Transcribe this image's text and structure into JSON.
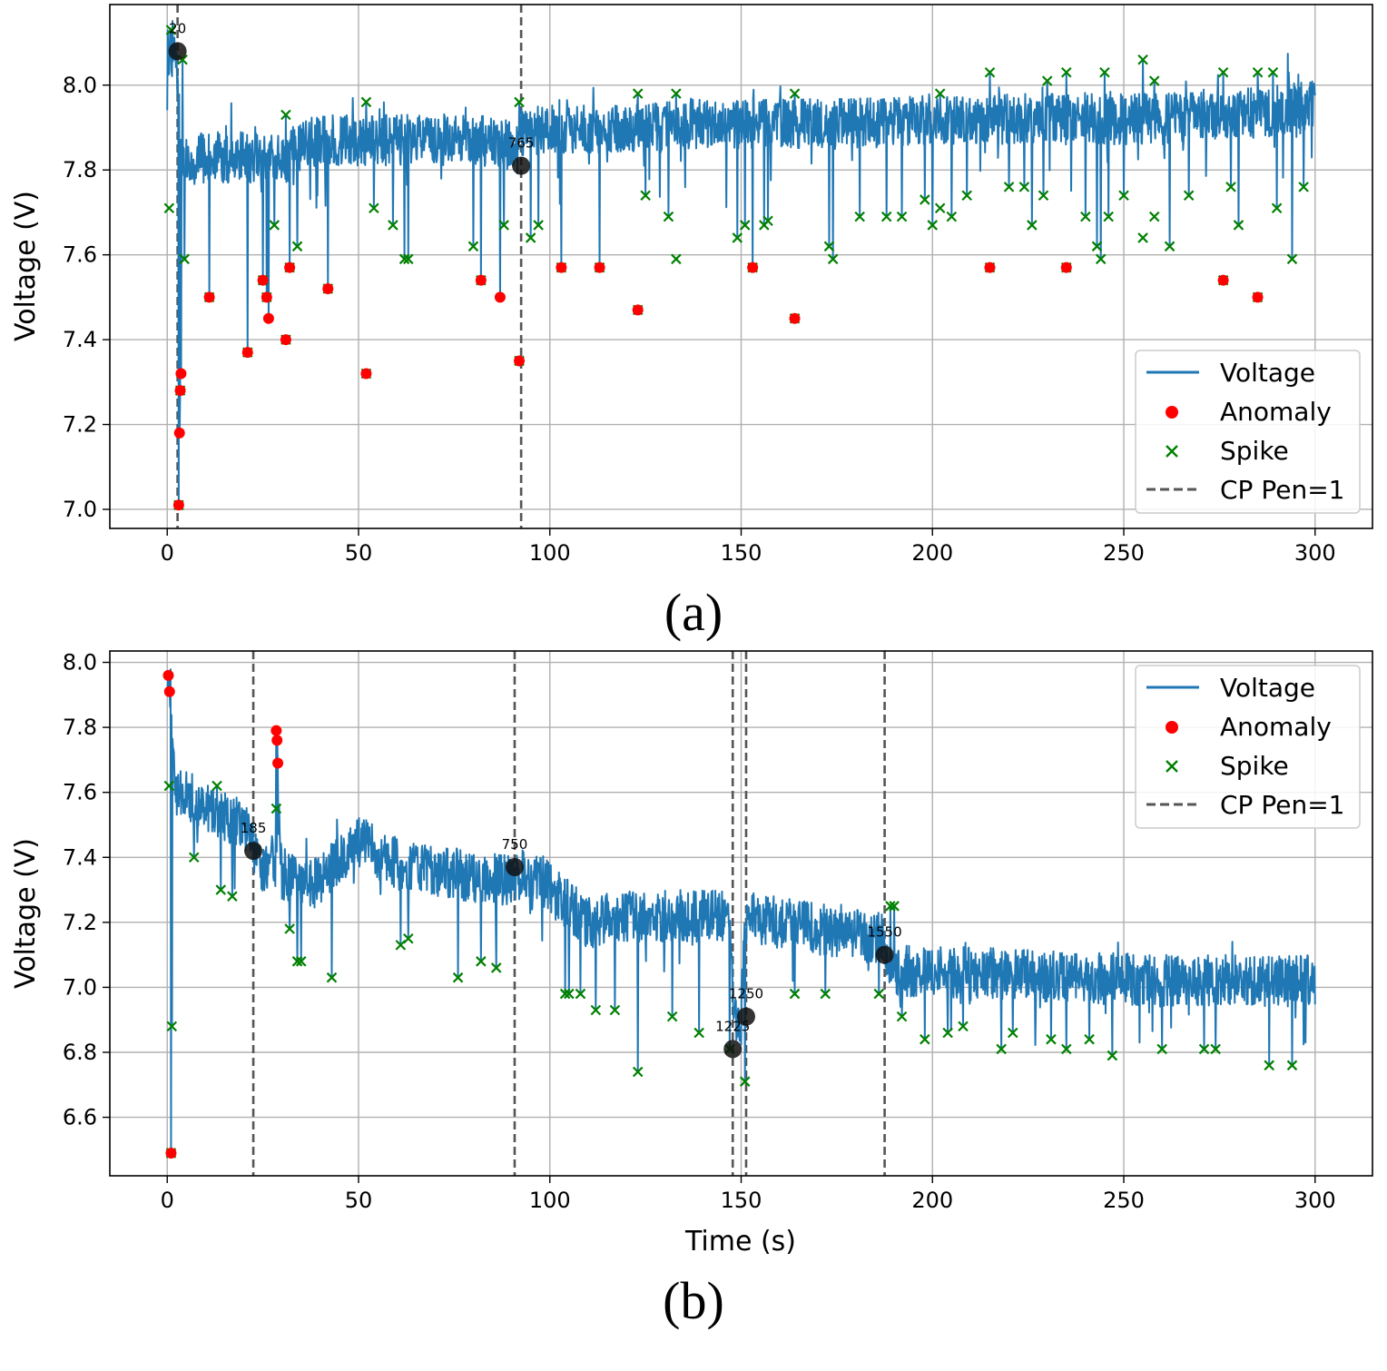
{
  "figure": {
    "captions": [
      "(a)",
      "(b)"
    ]
  },
  "colors": {
    "voltage": "#1f77b4",
    "anomaly": "#ff0000",
    "spike": "#008000",
    "changepoint_line": "#555555",
    "changepoint_marker": "#111111",
    "grid": "#b0b0b0"
  },
  "chart_data": [
    {
      "type": "line",
      "panel": "(a)",
      "xlabel": "",
      "ylabel": "Voltage (V)",
      "xlim": [
        -15,
        315
      ],
      "ylim": [
        6.955,
        8.19
      ],
      "xticks": [
        0,
        50,
        100,
        150,
        200,
        250,
        300
      ],
      "yticks": [
        7.0,
        7.2,
        7.4,
        7.6,
        7.8,
        8.0
      ],
      "grid": true,
      "legend_position": "lower right",
      "legend": [
        "Voltage",
        "Anomaly",
        "Spike",
        "CP Pen=1"
      ],
      "baseline": {
        "x": [
          0,
          2,
          4,
          10,
          20,
          30,
          35,
          40,
          50,
          60,
          70,
          80,
          90,
          92,
          95,
          100,
          110,
          120,
          130,
          140,
          150,
          160,
          170,
          180,
          190,
          200,
          210,
          220,
          230,
          240,
          250,
          260,
          270,
          280,
          290,
          300
        ],
        "y": [
          8.08,
          8.08,
          7.82,
          7.83,
          7.83,
          7.82,
          7.86,
          7.87,
          7.87,
          7.87,
          7.87,
          7.87,
          7.86,
          7.88,
          7.89,
          7.9,
          7.9,
          7.9,
          7.9,
          7.91,
          7.91,
          7.91,
          7.91,
          7.91,
          7.91,
          7.92,
          7.92,
          7.92,
          7.92,
          7.92,
          7.92,
          7.92,
          7.93,
          7.93,
          7.94,
          7.95
        ]
      },
      "noise_amplitude": 0.06,
      "dips": [
        [
          3,
          7.01
        ],
        [
          3.2,
          7.18
        ],
        [
          3.4,
          7.28
        ],
        [
          3.6,
          7.32
        ],
        [
          4.5,
          7.59
        ],
        [
          11,
          7.5
        ],
        [
          21,
          7.37
        ],
        [
          25,
          7.54
        ],
        [
          26,
          7.5
        ],
        [
          26.5,
          7.45
        ],
        [
          28,
          7.67
        ],
        [
          31,
          7.4
        ],
        [
          32,
          7.57
        ],
        [
          34,
          7.62
        ],
        [
          42,
          7.52
        ],
        [
          52,
          7.32
        ],
        [
          54,
          7.71
        ],
        [
          59,
          7.67
        ],
        [
          62,
          7.59
        ],
        [
          63,
          7.59
        ],
        [
          80,
          7.62
        ],
        [
          82,
          7.54
        ],
        [
          87,
          7.5
        ],
        [
          88,
          7.67
        ],
        [
          92,
          7.35
        ],
        [
          95,
          7.64
        ],
        [
          97,
          7.67
        ],
        [
          103,
          7.57
        ],
        [
          113,
          7.57
        ],
        [
          123,
          7.47
        ],
        [
          125,
          7.74
        ],
        [
          131,
          7.69
        ],
        [
          133,
          7.59
        ],
        [
          149,
          7.64
        ],
        [
          151,
          7.67
        ],
        [
          153,
          7.57
        ],
        [
          156,
          7.67
        ],
        [
          157,
          7.68
        ],
        [
          164,
          7.45
        ],
        [
          173,
          7.62
        ],
        [
          174,
          7.59
        ],
        [
          181,
          7.69
        ],
        [
          188,
          7.69
        ],
        [
          192,
          7.69
        ],
        [
          198,
          7.73
        ],
        [
          200,
          7.67
        ],
        [
          202,
          7.71
        ],
        [
          205,
          7.69
        ],
        [
          209,
          7.74
        ],
        [
          215,
          7.57
        ],
        [
          220,
          7.76
        ],
        [
          224,
          7.76
        ],
        [
          226,
          7.67
        ],
        [
          229,
          7.74
        ],
        [
          235,
          7.57
        ],
        [
          240,
          7.69
        ],
        [
          243,
          7.62
        ],
        [
          244,
          7.59
        ],
        [
          246,
          7.69
        ],
        [
          250,
          7.74
        ],
        [
          255,
          7.64
        ],
        [
          258,
          7.69
        ],
        [
          262,
          7.62
        ],
        [
          267,
          7.74
        ],
        [
          276,
          7.54
        ],
        [
          278,
          7.76
        ],
        [
          280,
          7.67
        ],
        [
          285,
          7.5
        ],
        [
          290,
          7.71
        ],
        [
          294,
          7.59
        ],
        [
          297,
          7.76
        ]
      ],
      "upward_spikes": [
        [
          1,
          8.13
        ],
        [
          4,
          8.06
        ],
        [
          31,
          7.93
        ],
        [
          52,
          7.96
        ],
        [
          92,
          7.96
        ],
        [
          123,
          7.98
        ],
        [
          133,
          7.98
        ],
        [
          164,
          7.98
        ],
        [
          202,
          7.98
        ],
        [
          215,
          8.03
        ],
        [
          230,
          8.01
        ],
        [
          235,
          8.03
        ],
        [
          245,
          8.03
        ],
        [
          255,
          8.06
        ],
        [
          258,
          8.01
        ],
        [
          276,
          8.03
        ],
        [
          285,
          8.03
        ],
        [
          289,
          8.03
        ]
      ],
      "anomaly": {
        "x": [
          3,
          3.2,
          3.4,
          3.6,
          11,
          21,
          25,
          26,
          26.5,
          31,
          32,
          42,
          52,
          82,
          87,
          92,
          103,
          113,
          123,
          153,
          164,
          215,
          235,
          276,
          285
        ],
        "y": [
          7.01,
          7.18,
          7.28,
          7.32,
          7.5,
          7.37,
          7.54,
          7.5,
          7.45,
          7.4,
          7.57,
          7.52,
          7.32,
          7.54,
          7.5,
          7.35,
          7.57,
          7.57,
          7.47,
          7.57,
          7.45,
          7.57,
          7.57,
          7.54,
          7.5
        ]
      },
      "spike": {
        "x": [
          0.5,
          3,
          3.4,
          4.5,
          11,
          21,
          25,
          26,
          28,
          31,
          32,
          34,
          42,
          52,
          54,
          59,
          62,
          63,
          80,
          82,
          88,
          92,
          95,
          97,
          103,
          113,
          123,
          125,
          131,
          133,
          149,
          151,
          153,
          156,
          157,
          164,
          173,
          174,
          181,
          188,
          192,
          198,
          200,
          202,
          205,
          209,
          215,
          220,
          224,
          226,
          229,
          235,
          240,
          243,
          244,
          246,
          250,
          255,
          258,
          262,
          267,
          276,
          278,
          280,
          285,
          290,
          294,
          297,
          1,
          4,
          31,
          52,
          92,
          123,
          133,
          164,
          202,
          215,
          230,
          235,
          245,
          255,
          258,
          276,
          285,
          289
        ],
        "y": [
          7.71,
          7.01,
          7.28,
          7.59,
          7.5,
          7.37,
          7.54,
          7.5,
          7.67,
          7.4,
          7.57,
          7.62,
          7.52,
          7.32,
          7.71,
          7.67,
          7.59,
          7.59,
          7.62,
          7.54,
          7.67,
          7.35,
          7.64,
          7.67,
          7.57,
          7.57,
          7.47,
          7.74,
          7.69,
          7.59,
          7.64,
          7.67,
          7.57,
          7.67,
          7.68,
          7.45,
          7.62,
          7.59,
          7.69,
          7.69,
          7.69,
          7.73,
          7.67,
          7.71,
          7.69,
          7.74,
          7.57,
          7.76,
          7.76,
          7.67,
          7.74,
          7.57,
          7.69,
          7.62,
          7.59,
          7.69,
          7.74,
          7.64,
          7.69,
          7.62,
          7.74,
          7.54,
          7.76,
          7.67,
          7.5,
          7.71,
          7.59,
          7.76,
          8.13,
          8.06,
          7.93,
          7.96,
          7.96,
          7.98,
          7.98,
          7.98,
          7.98,
          8.03,
          8.01,
          8.03,
          8.03,
          8.06,
          8.01,
          8.03,
          8.03,
          8.03
        ]
      },
      "changepoints": [
        {
          "x": 2.7,
          "y": 8.08,
          "label": "20"
        },
        {
          "x": 92.5,
          "y": 7.81,
          "label": "765"
        }
      ]
    },
    {
      "type": "line",
      "panel": "(b)",
      "xlabel": "Time (s)",
      "ylabel": "Voltage (V)",
      "xlim": [
        -15,
        315
      ],
      "ylim": [
        6.42,
        8.035
      ],
      "xticks": [
        0,
        50,
        100,
        150,
        200,
        250,
        300
      ],
      "yticks": [
        6.6,
        6.8,
        7.0,
        7.2,
        7.4,
        7.6,
        7.8,
        8.0
      ],
      "grid": true,
      "legend_position": "upper right",
      "legend": [
        "Voltage",
        "Anomaly",
        "Spike",
        "CP Pen=1"
      ],
      "baseline": {
        "x": [
          0,
          1,
          2,
          5,
          10,
          15,
          20,
          22,
          25,
          28,
          29,
          30,
          35,
          40,
          45,
          50,
          60,
          70,
          80,
          90,
          93,
          95,
          97,
          100,
          110,
          120,
          130,
          140,
          147,
          148,
          150,
          151,
          152,
          160,
          170,
          180,
          187,
          188,
          190,
          200,
          220,
          240,
          260,
          280,
          300
        ],
        "y": [
          7.9,
          7.9,
          7.6,
          7.6,
          7.55,
          7.52,
          7.5,
          7.45,
          7.35,
          7.4,
          7.55,
          7.35,
          7.32,
          7.32,
          7.4,
          7.45,
          7.38,
          7.36,
          7.34,
          7.33,
          7.35,
          7.3,
          7.35,
          7.3,
          7.2,
          7.22,
          7.22,
          7.22,
          7.22,
          6.9,
          6.9,
          7.2,
          7.22,
          7.2,
          7.18,
          7.16,
          7.15,
          7.05,
          7.05,
          7.05,
          7.04,
          7.03,
          7.02,
          7.02,
          7.02
        ]
      },
      "noise_amplitude": 0.08,
      "dips": [
        [
          1,
          6.49
        ],
        [
          1.2,
          6.88
        ],
        [
          7,
          7.4
        ],
        [
          14,
          7.3
        ],
        [
          17,
          7.28
        ],
        [
          32,
          7.18
        ],
        [
          34,
          7.08
        ],
        [
          35,
          7.08
        ],
        [
          43,
          7.03
        ],
        [
          61,
          7.13
        ],
        [
          63,
          7.15
        ],
        [
          76,
          7.03
        ],
        [
          82,
          7.08
        ],
        [
          86,
          7.06
        ],
        [
          104,
          6.98
        ],
        [
          105,
          6.98
        ],
        [
          108,
          6.98
        ],
        [
          112,
          6.93
        ],
        [
          117,
          6.93
        ],
        [
          123,
          6.74
        ],
        [
          132,
          6.91
        ],
        [
          139,
          6.86
        ],
        [
          147,
          6.81
        ],
        [
          151,
          6.71
        ],
        [
          164,
          6.98
        ],
        [
          172,
          6.98
        ],
        [
          186,
          6.98
        ],
        [
          192,
          6.91
        ],
        [
          198,
          6.84
        ],
        [
          204,
          6.86
        ],
        [
          208,
          6.88
        ],
        [
          218,
          6.81
        ],
        [
          221,
          6.86
        ],
        [
          231,
          6.84
        ],
        [
          235,
          6.81
        ],
        [
          241,
          6.84
        ],
        [
          247,
          6.79
        ],
        [
          260,
          6.81
        ],
        [
          271,
          6.81
        ],
        [
          274,
          6.81
        ],
        [
          288,
          6.76
        ],
        [
          294,
          6.76
        ]
      ],
      "upward_spikes": [
        [
          0.3,
          7.96
        ],
        [
          0.6,
          7.91
        ],
        [
          28.5,
          7.79
        ],
        [
          28.7,
          7.76
        ],
        [
          28.9,
          7.69
        ],
        [
          13,
          7.62
        ],
        [
          189,
          7.25
        ],
        [
          190,
          7.25
        ]
      ],
      "anomaly": {
        "x": [
          0.3,
          0.6,
          1,
          28.5,
          28.7,
          28.9
        ],
        "y": [
          7.96,
          7.91,
          6.49,
          7.79,
          7.76,
          7.69
        ]
      },
      "spike": {
        "x": [
          0.5,
          1,
          1.2,
          7,
          14,
          17,
          28.5,
          32,
          34,
          35,
          43,
          61,
          63,
          76,
          82,
          86,
          104,
          105,
          108,
          112,
          117,
          123,
          132,
          139,
          147,
          151,
          164,
          172,
          186,
          192,
          198,
          204,
          208,
          218,
          221,
          231,
          235,
          241,
          247,
          260,
          271,
          274,
          288,
          294,
          13,
          189,
          190
        ],
        "y": [
          7.62,
          6.49,
          6.88,
          7.4,
          7.3,
          7.28,
          7.55,
          7.18,
          7.08,
          7.08,
          7.03,
          7.13,
          7.15,
          7.03,
          7.08,
          7.06,
          6.98,
          6.98,
          6.98,
          6.93,
          6.93,
          6.74,
          6.91,
          6.86,
          6.81,
          6.71,
          6.98,
          6.98,
          6.98,
          6.91,
          6.84,
          6.86,
          6.88,
          6.81,
          6.86,
          6.84,
          6.81,
          6.84,
          6.79,
          6.81,
          6.81,
          6.81,
          6.76,
          6.76,
          7.62,
          7.25,
          7.25
        ]
      },
      "changepoints": [
        {
          "x": 22.5,
          "y": 7.42,
          "label": "185"
        },
        {
          "x": 90.8,
          "y": 7.37,
          "label": "750"
        },
        {
          "x": 147.8,
          "y": 6.81,
          "label": "1225"
        },
        {
          "x": 151.3,
          "y": 6.91,
          "label": "1250"
        },
        {
          "x": 187.5,
          "y": 7.1,
          "label": "1550"
        }
      ]
    }
  ]
}
